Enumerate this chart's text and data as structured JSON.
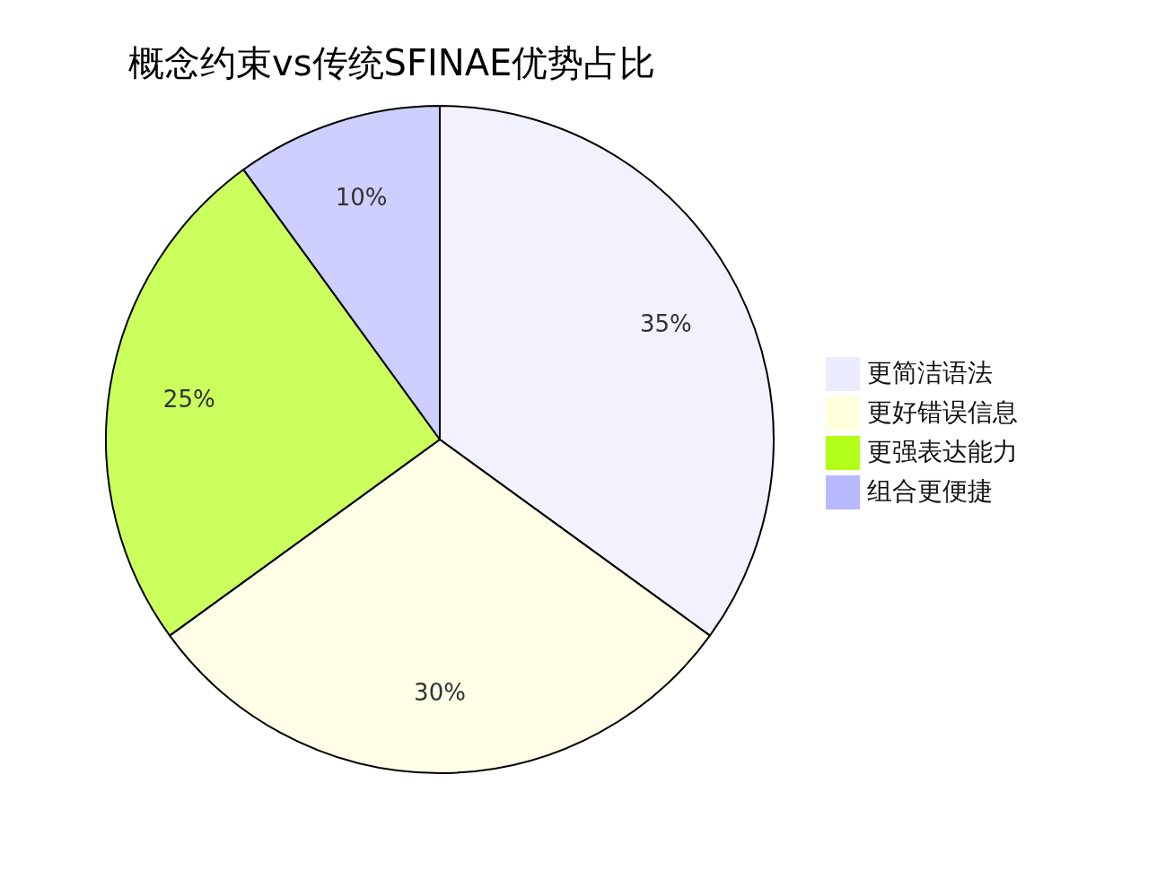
{
  "chart_data": {
    "type": "pie",
    "title": "概念约束vs传统SFINAE优势占比",
    "categories": [
      "更简洁语法",
      "更好错误信息",
      "更强表达能力",
      "组合更便捷"
    ],
    "values": [
      35,
      30,
      25,
      10
    ],
    "colors": [
      "#ececff",
      "#ffffde",
      "#b3ff1a",
      "#b9b9ff"
    ],
    "value_labels": [
      "35%",
      "30%",
      "25%",
      "10%"
    ],
    "legend": "right"
  }
}
